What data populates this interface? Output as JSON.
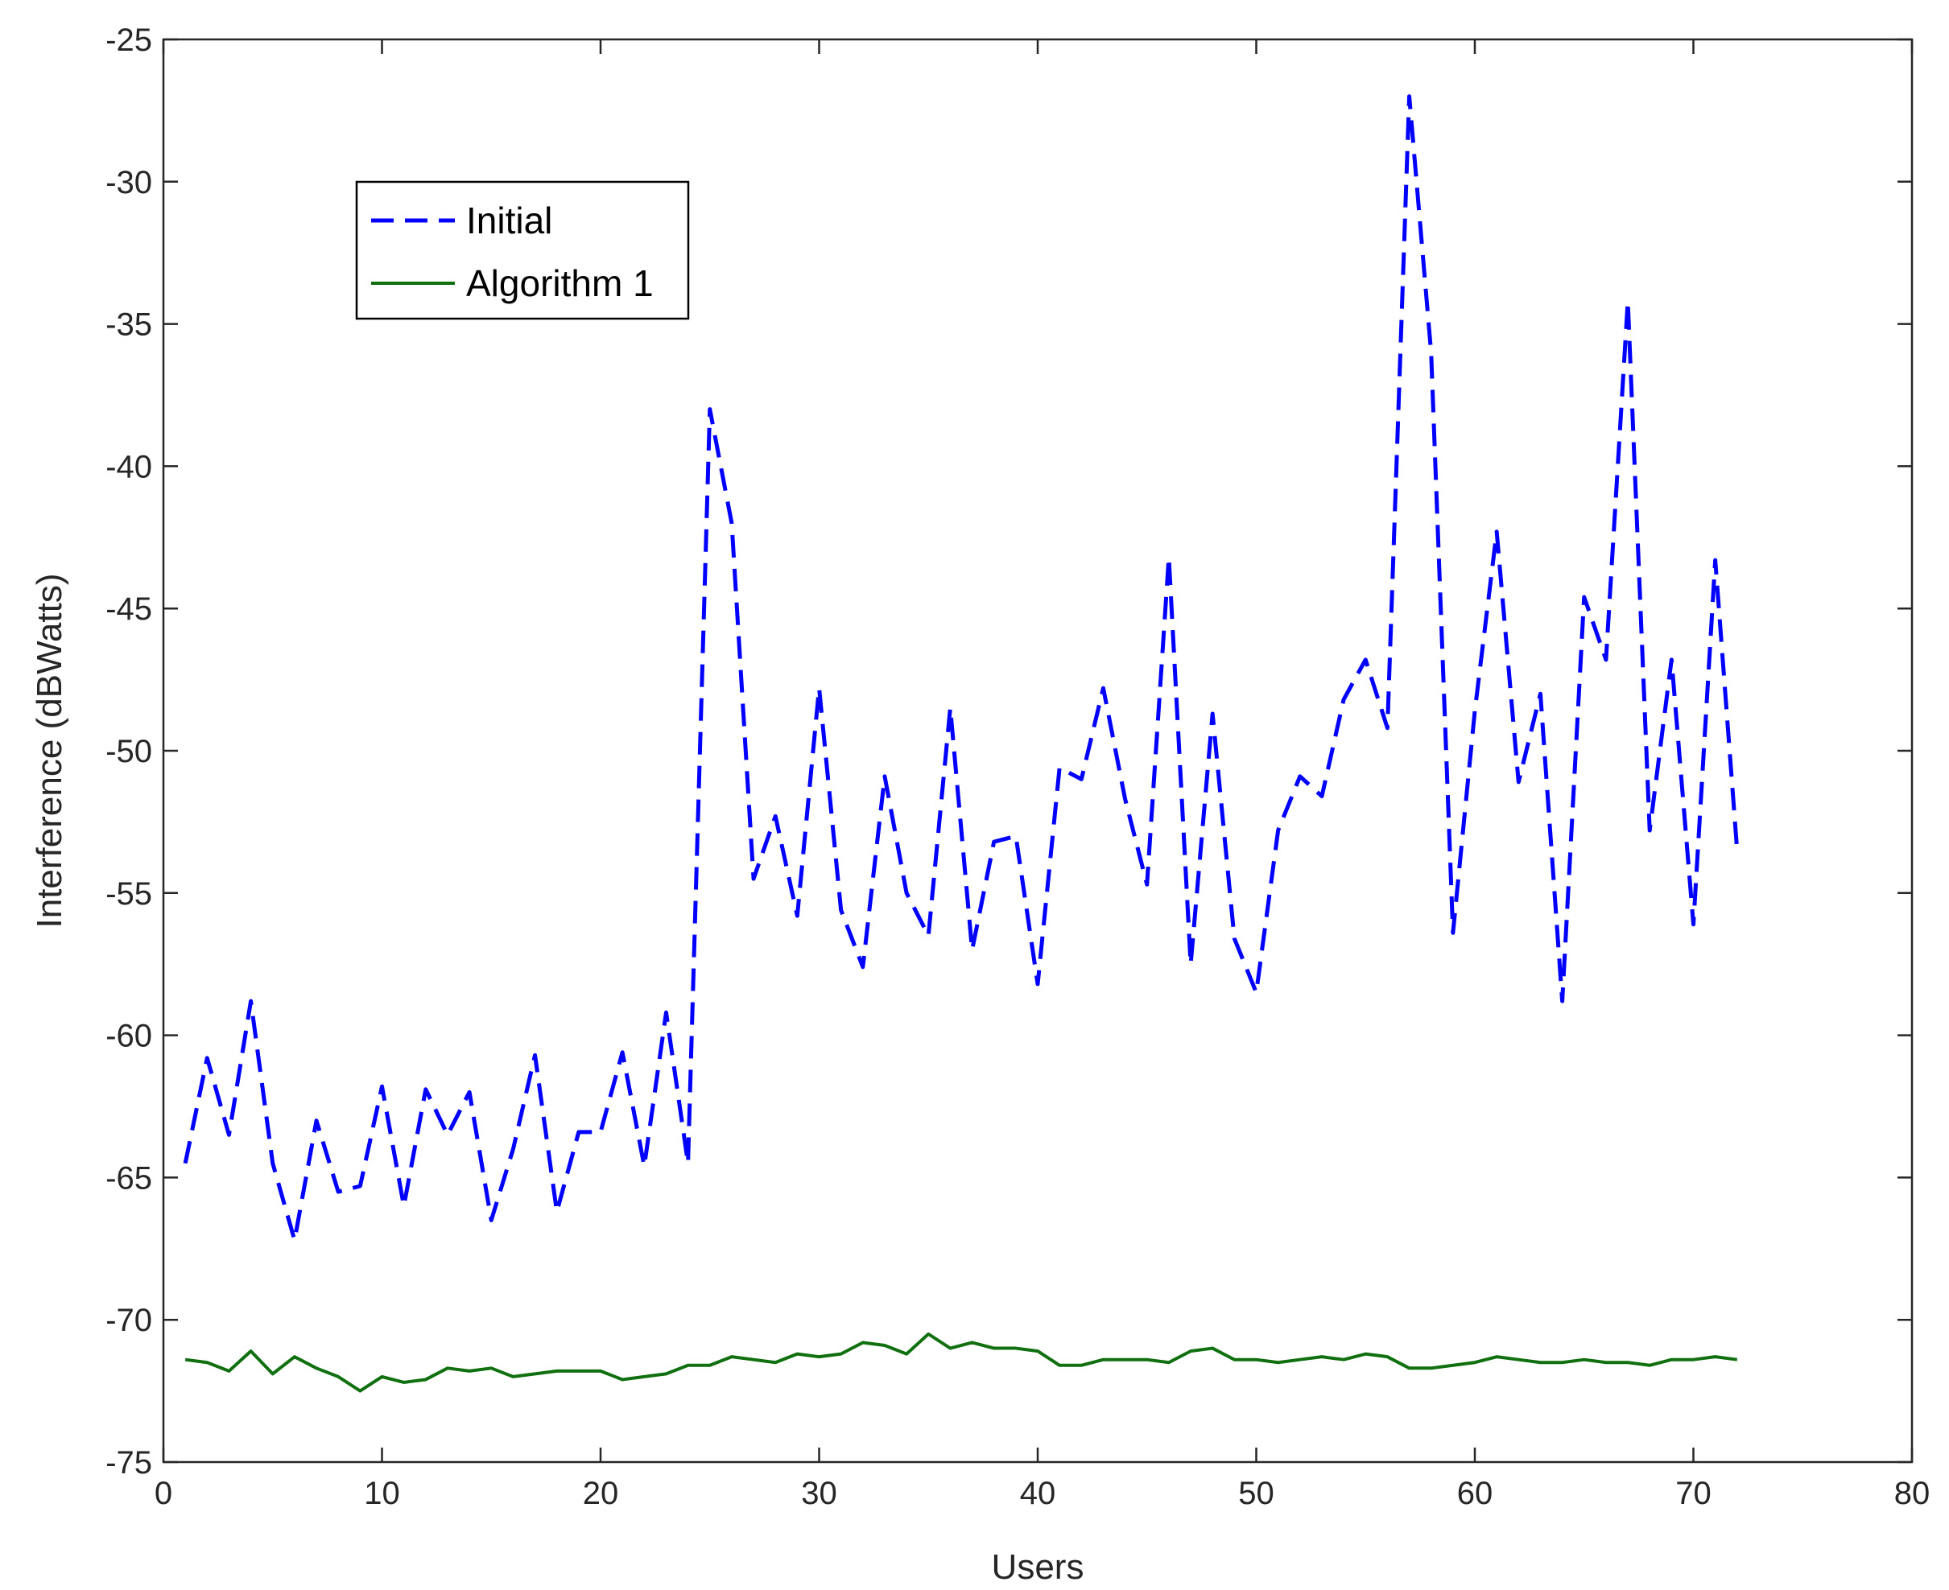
{
  "chart_data": {
    "type": "line",
    "title": "",
    "xlabel": "Users",
    "ylabel": "Interference (dBWatts)",
    "xlim": [
      0,
      80
    ],
    "ylim": [
      -75,
      -25
    ],
    "xticks": [
      0,
      10,
      20,
      30,
      40,
      50,
      60,
      70,
      80
    ],
    "yticks": [
      -25,
      -30,
      -35,
      -40,
      -45,
      -50,
      -55,
      -60,
      -65,
      -70,
      -75
    ],
    "xtick_labels": [
      "0",
      "10",
      "20",
      "30",
      "40",
      "50",
      "60",
      "70",
      "80"
    ],
    "ytick_labels": [
      "-25",
      "-30",
      "-35",
      "-40",
      "-45",
      "-50",
      "-55",
      "-60",
      "-65",
      "-70",
      "-75"
    ],
    "grid": false,
    "legend_position": "upper-left",
    "x": [
      1,
      2,
      3,
      4,
      5,
      6,
      7,
      8,
      9,
      10,
      11,
      12,
      13,
      14,
      15,
      16,
      17,
      18,
      19,
      20,
      21,
      22,
      23,
      24,
      25,
      26,
      27,
      28,
      29,
      30,
      31,
      32,
      33,
      34,
      35,
      36,
      37,
      38,
      39,
      40,
      41,
      42,
      43,
      44,
      45,
      46,
      47,
      48,
      49,
      50,
      51,
      52,
      53,
      54,
      55,
      56,
      57,
      58,
      59,
      60,
      61,
      62,
      63,
      64,
      65,
      66,
      67,
      68,
      69,
      70,
      71,
      72
    ],
    "series": [
      {
        "name": "Initial",
        "color": "#0000ff",
        "style": "dashed",
        "values": [
          -64.5,
          -60.8,
          -63.5,
          -58.8,
          -64.5,
          -67.2,
          -63.0,
          -65.5,
          -65.3,
          -61.8,
          -66.0,
          -61.9,
          -63.5,
          -62.0,
          -66.5,
          -64.0,
          -60.7,
          -66.2,
          -63.4,
          -63.4,
          -60.6,
          -64.6,
          -59.2,
          -64.5,
          -38.0,
          -42.0,
          -54.5,
          -52.3,
          -55.8,
          -47.8,
          -55.6,
          -57.6,
          -50.9,
          -55.0,
          -56.5,
          -48.5,
          -57.0,
          -53.2,
          -53.0,
          -58.2,
          -50.6,
          -51.0,
          -47.8,
          -51.7,
          -54.7,
          -43.2,
          -57.5,
          -48.7,
          -56.6,
          -58.5,
          -52.8,
          -50.9,
          -51.6,
          -48.2,
          -46.8,
          -49.2,
          -27.0,
          -36.0,
          -56.4,
          -48.6,
          -42.3,
          -51.1,
          -48.0,
          -58.8,
          -44.6,
          -46.8,
          -34.2,
          -52.8,
          -46.8,
          -56.1,
          -43.3,
          -53.5
        ]
      },
      {
        "name": "Algorithm 1",
        "color": "#107010",
        "style": "solid",
        "values": [
          -71.4,
          -71.5,
          -71.8,
          -71.1,
          -71.9,
          -71.3,
          -71.7,
          -72.0,
          -72.5,
          -72.0,
          -72.2,
          -72.1,
          -71.7,
          -71.8,
          -71.7,
          -72.0,
          -71.9,
          -71.8,
          -71.8,
          -71.8,
          -72.1,
          -72.0,
          -71.9,
          -71.6,
          -71.6,
          -71.3,
          -71.4,
          -71.5,
          -71.2,
          -71.3,
          -71.2,
          -70.8,
          -70.9,
          -71.2,
          -70.5,
          -71.0,
          -70.8,
          -71.0,
          -71.0,
          -71.1,
          -71.6,
          -71.6,
          -71.4,
          -71.4,
          -71.4,
          -71.5,
          -71.1,
          -71.0,
          -71.4,
          -71.4,
          -71.5,
          -71.4,
          -71.3,
          -71.4,
          -71.2,
          -71.3,
          -71.7,
          -71.7,
          -71.6,
          -71.5,
          -71.3,
          -71.4,
          -71.5,
          -71.5,
          -71.4,
          -71.5,
          -71.5,
          -71.6,
          -71.4,
          -71.4,
          -71.3,
          -71.4
        ]
      }
    ]
  }
}
